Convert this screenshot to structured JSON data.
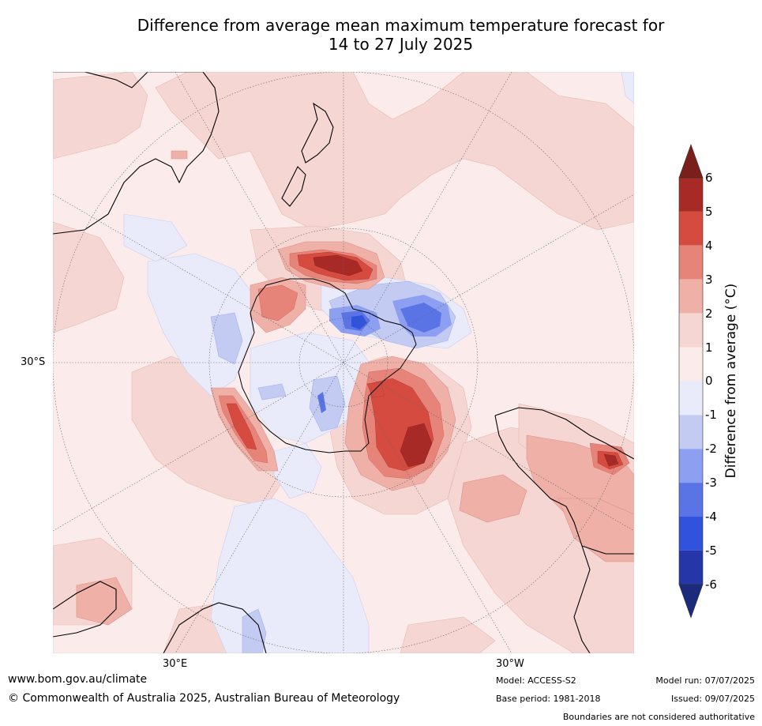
{
  "title_line1": "Difference from average mean maximum temperature forecast for",
  "title_line2": "14 to 27 July 2025",
  "map": {
    "lat_label": "30°S",
    "lon_label_east": "30°E",
    "lon_label_west": "30°W",
    "projection": "south polar stereographic",
    "ocean_base_color": "#fbeceb"
  },
  "colorbar": {
    "label": "Difference from average (°C)",
    "ticks": [
      "6",
      "5",
      "4",
      "3",
      "2",
      "1",
      "0",
      "-1",
      "-2",
      "-3",
      "-4",
      "-5",
      "-6"
    ],
    "bin_colors": [
      "#a82a26",
      "#d64b40",
      "#e7847a",
      "#efb0a8",
      "#f5d6d2",
      "#fbeceb",
      "#e9ebfb",
      "#c3cbf3",
      "#8d9ff0",
      "#5a74e6",
      "#3152dd",
      "#2436a8"
    ],
    "over_color": "#7a1f1c",
    "under_color": "#1c2a7c"
  },
  "footer": {
    "url": "www.bom.gov.au/climate",
    "copyright": "© Commonwealth of Australia 2025, Australian Bureau of Meteorology",
    "model": "Model: ACCESS-S2",
    "base_period": "Base period: 1981-2018",
    "model_run": "Model run: 07/07/2025",
    "issued": "Issued: 09/07/2025",
    "disclaimer": "Boundaries are not considered authoritative"
  }
}
